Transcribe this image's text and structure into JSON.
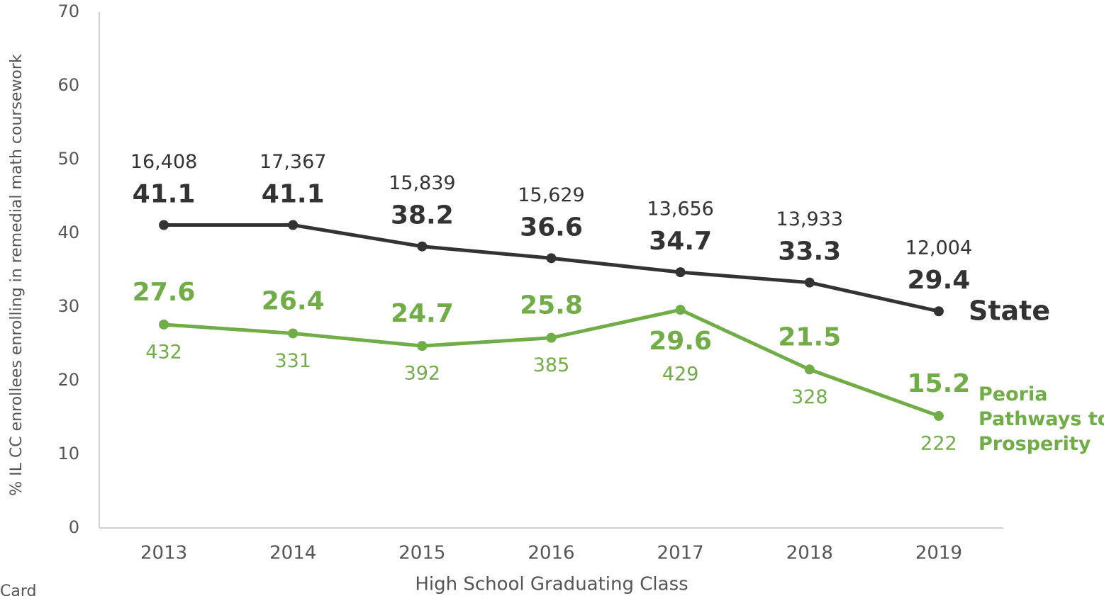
{
  "chart_data": {
    "type": "line",
    "y_label": "% IL CC enrollees enrolling in remedial math coursework",
    "x_label": "High School Graduating Class",
    "footnote": "Card",
    "categories": [
      "2013",
      "2014",
      "2015",
      "2016",
      "2017",
      "2018",
      "2019"
    ],
    "series": [
      {
        "name": "State",
        "color": "#333333",
        "values": [
          41.1,
          41.1,
          38.2,
          36.6,
          34.7,
          33.3,
          29.4
        ],
        "count_labels": [
          "16,408",
          "17,367",
          "15,839",
          "15,629",
          "13,656",
          "13,933",
          "12,004"
        ]
      },
      {
        "name": "Peoria Pathways to Prosperity",
        "color": "#70ad47",
        "values": [
          27.6,
          26.4,
          24.7,
          25.8,
          29.6,
          21.5,
          15.2
        ],
        "count_labels": [
          "432",
          "331",
          "392",
          "385",
          "429",
          "328",
          "222"
        ]
      }
    ],
    "ylim": [
      0,
      70
    ],
    "yticks": [
      0,
      10,
      20,
      30,
      40,
      50,
      60,
      70
    ],
    "grid": false
  }
}
